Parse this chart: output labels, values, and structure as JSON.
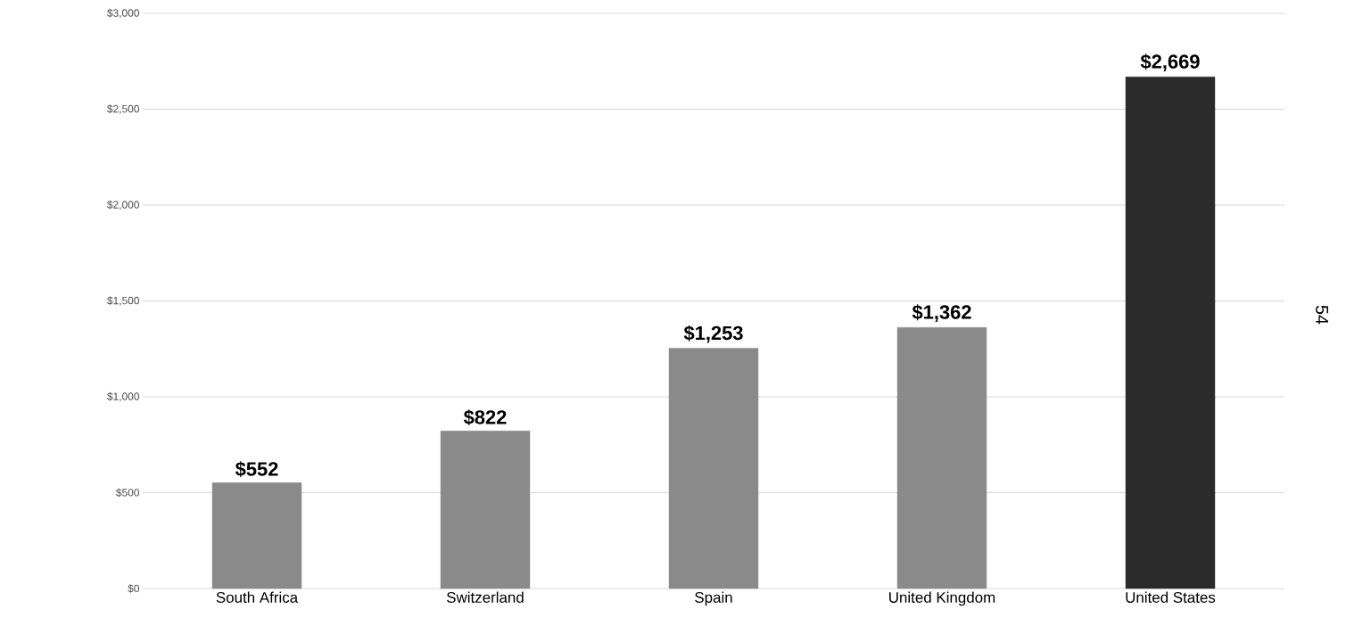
{
  "chart_data": {
    "type": "bar",
    "categories": [
      "South Africa",
      "Switzerland",
      "Spain",
      "United Kingdom",
      "United States"
    ],
    "values": [
      552,
      822,
      1253,
      1362,
      2669
    ],
    "colors": [
      "#8a8a8a",
      "#8a8a8a",
      "#8a8a8a",
      "#8a8a8a",
      "#2b2b2b"
    ],
    "value_labels": [
      "$552",
      "$822",
      "$1,253",
      "$1,362",
      "$2,669"
    ],
    "ylim": [
      0,
      3000
    ],
    "yticks": [
      {
        "value": 0,
        "label": "$0"
      },
      {
        "value": 500,
        "label": "$500"
      },
      {
        "value": 1000,
        "label": "$1,000"
      },
      {
        "value": 1500,
        "label": "$1,500"
      },
      {
        "value": 2000,
        "label": "$2,000"
      },
      {
        "value": 2500,
        "label": "$2,500"
      },
      {
        "value": 3000,
        "label": "$3,000"
      }
    ],
    "grid": "y",
    "annotations": [
      "54"
    ]
  }
}
